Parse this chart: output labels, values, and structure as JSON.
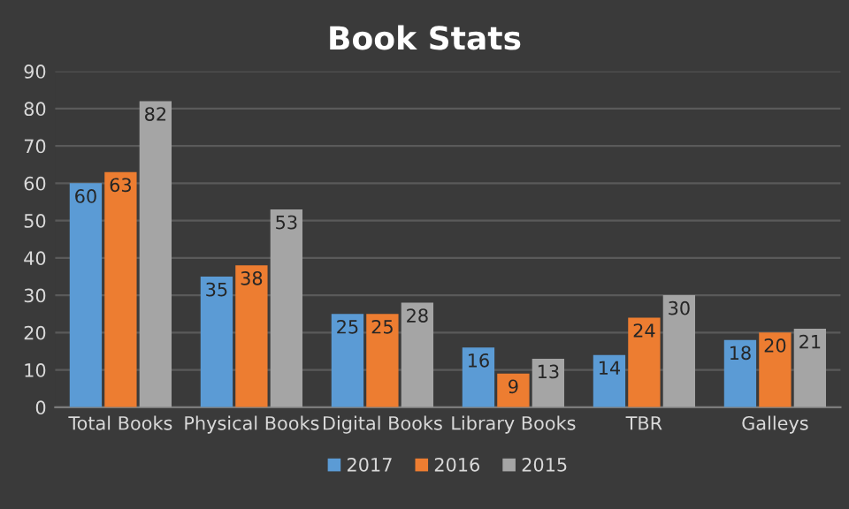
{
  "chart_data": {
    "type": "bar",
    "title": "Book Stats",
    "categories": [
      "Total Books",
      "Physical Books",
      "Digital Books",
      "Library Books",
      "TBR",
      "Galleys"
    ],
    "series": [
      {
        "name": "2017",
        "color": "#5b9bd5",
        "values": [
          60,
          35,
          25,
          16,
          14,
          18
        ]
      },
      {
        "name": "2016",
        "color": "#ed7d31",
        "values": [
          63,
          38,
          25,
          9,
          24,
          20
        ]
      },
      {
        "name": "2015",
        "color": "#a5a5a5",
        "values": [
          82,
          53,
          28,
          13,
          30,
          21
        ]
      }
    ],
    "ylim": [
      0,
      90
    ],
    "yticks": [
      0,
      10,
      20,
      30,
      40,
      50,
      60,
      70,
      80,
      90
    ],
    "grid": "y",
    "legend": "bottom",
    "data_labels": true
  }
}
